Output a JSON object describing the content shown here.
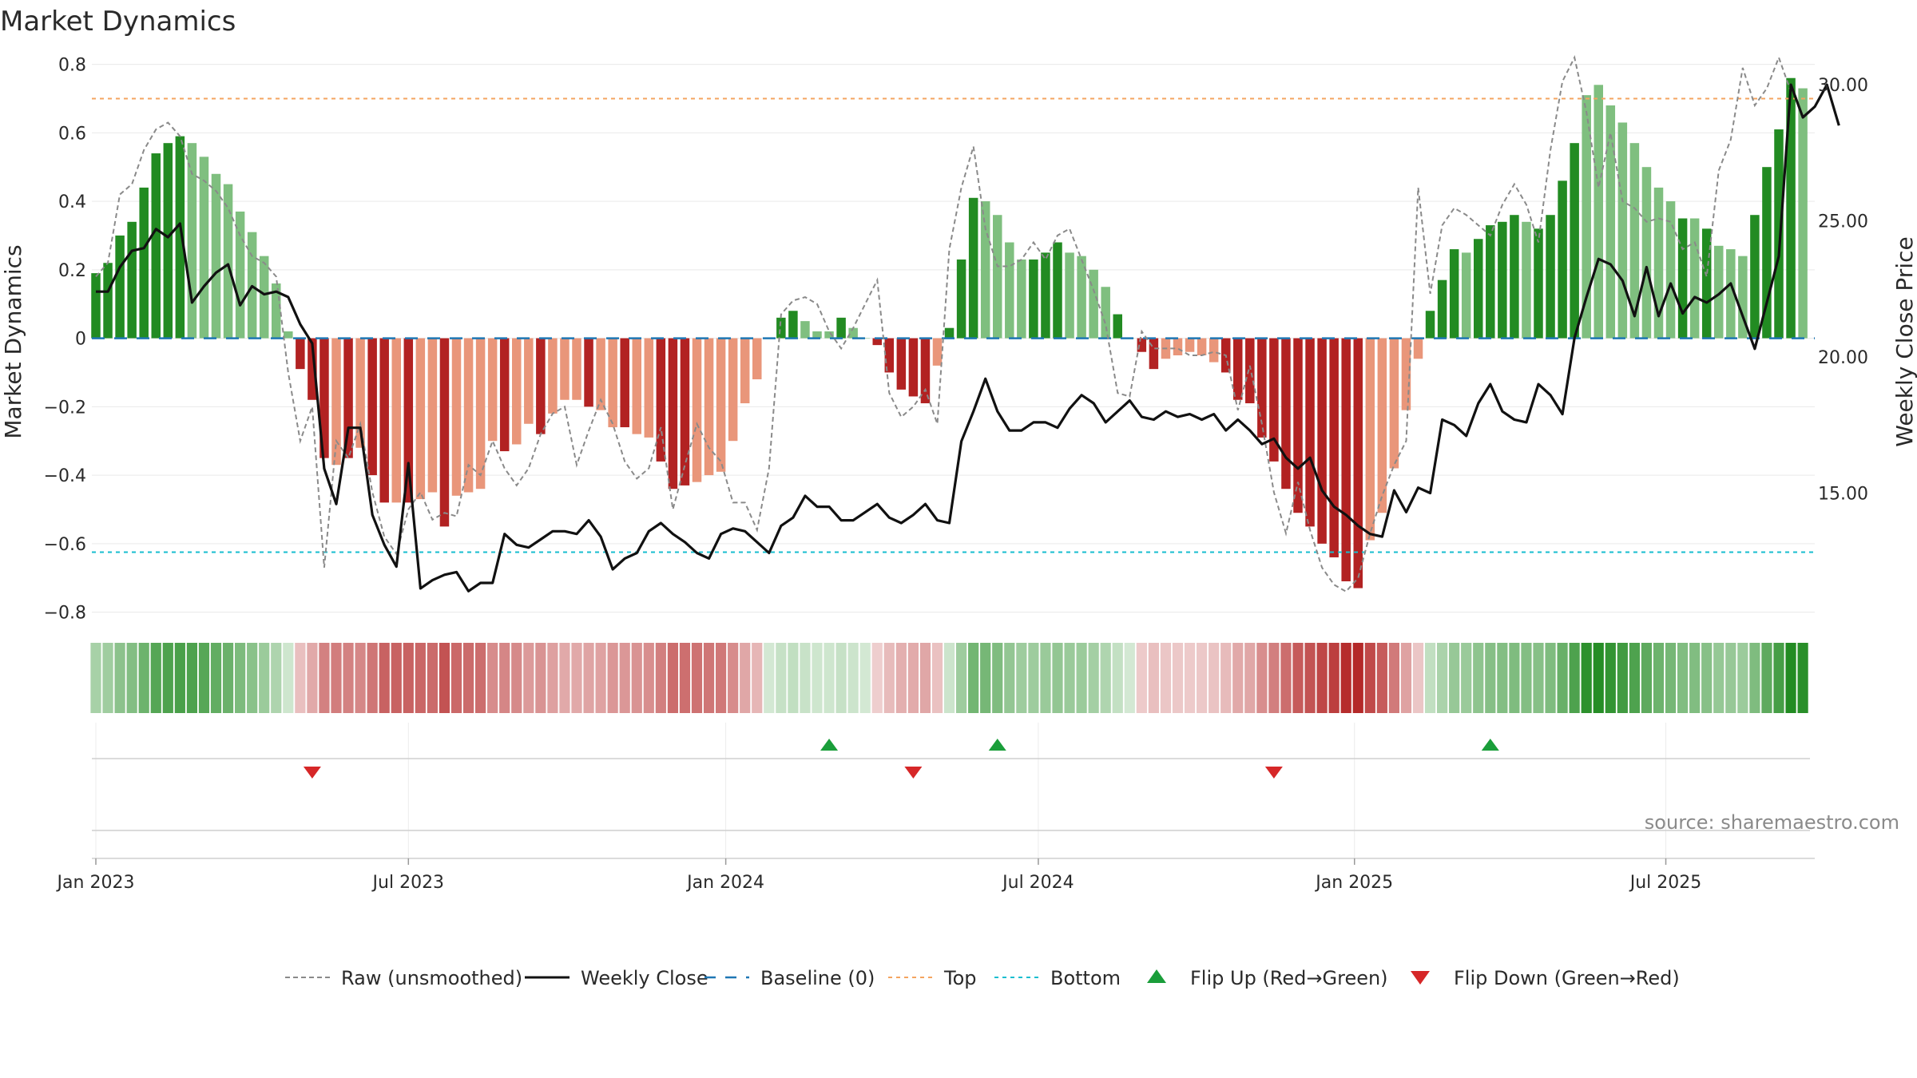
{
  "chart_data": {
    "type": "bar",
    "title": "Market Dynamics",
    "ylabel_left": "Market Dynamics",
    "ylabel_right": "Weekly Close Price",
    "source": "source: sharemaestro.com",
    "ylim_left": [
      -0.85,
      0.82
    ],
    "ylim_right": [
      10.0,
      31.0
    ],
    "left_ticks": [
      {
        "v": 0.8,
        "label": "0.8"
      },
      {
        "v": 0.6,
        "label": "0.6"
      },
      {
        "v": 0.4,
        "label": "0.4"
      },
      {
        "v": 0.2,
        "label": "0.2"
      },
      {
        "v": 0.0,
        "label": "0"
      },
      {
        "v": -0.2,
        "label": "−0.2"
      },
      {
        "v": -0.4,
        "label": "−0.4"
      },
      {
        "v": -0.6,
        "label": "−0.6"
      },
      {
        "v": -0.8,
        "label": "−0.8"
      }
    ],
    "right_ticks": [
      {
        "v": 30,
        "label": "30.00"
      },
      {
        "v": 25,
        "label": "25.00"
      },
      {
        "v": 20,
        "label": "20.00"
      },
      {
        "v": 15,
        "label": "15.00"
      }
    ],
    "x_ticks": [
      {
        "week": 1,
        "label": "Jan 2023"
      },
      {
        "week": 27,
        "label": "Jul 2023"
      },
      {
        "week": 53.4,
        "label": "Jan 2024"
      },
      {
        "week": 79.4,
        "label": "Jul 2024"
      },
      {
        "week": 105.7,
        "label": "Jan 2025"
      },
      {
        "week": 131.6,
        "label": "Jul 2025"
      }
    ],
    "top_line": 0.7,
    "bottom_line": -0.625,
    "baseline": 0,
    "colors": {
      "strong_green": "#228b22",
      "weak_green": "#7fbf7f",
      "strong_red": "#b22222",
      "weak_red": "#e9967a",
      "close": "#111111",
      "raw": "#8a8a8a",
      "baseline": "#1f77b4",
      "top": "#f4a460",
      "bottom": "#17becf",
      "flip_up": "#1a9e3a",
      "flip_down": "#d62728"
    },
    "smoothed": [
      0.19,
      0.22,
      0.3,
      0.34,
      0.44,
      0.54,
      0.57,
      0.59,
      0.57,
      0.53,
      0.48,
      0.45,
      0.37,
      0.31,
      0.24,
      0.16,
      0.02,
      -0.09,
      -0.18,
      -0.35,
      -0.37,
      -0.35,
      -0.32,
      -0.4,
      -0.48,
      -0.48,
      -0.48,
      -0.47,
      -0.45,
      -0.55,
      -0.46,
      -0.45,
      -0.44,
      -0.3,
      -0.33,
      -0.31,
      -0.25,
      -0.28,
      -0.22,
      -0.18,
      -0.18,
      -0.2,
      -0.21,
      -0.26,
      -0.26,
      -0.28,
      -0.29,
      -0.36,
      -0.44,
      -0.43,
      -0.42,
      -0.4,
      -0.39,
      -0.3,
      -0.19,
      -0.12,
      0.0,
      0.06,
      0.08,
      0.05,
      0.02,
      0.02,
      0.06,
      0.03,
      0.0,
      -0.02,
      -0.1,
      -0.15,
      -0.17,
      -0.19,
      -0.08,
      0.03,
      0.23,
      0.41,
      0.4,
      0.36,
      0.28,
      0.23,
      0.23,
      0.25,
      0.28,
      0.25,
      0.24,
      0.2,
      0.15,
      0.07,
      0.0,
      -0.04,
      -0.09,
      -0.06,
      -0.05,
      -0.04,
      -0.05,
      -0.07,
      -0.1,
      -0.18,
      -0.19,
      -0.29,
      -0.36,
      -0.44,
      -0.51,
      -0.55,
      -0.6,
      -0.64,
      -0.71,
      -0.73,
      -0.59,
      -0.51,
      -0.38,
      -0.21,
      -0.06,
      0.08,
      0.17,
      0.26,
      0.25,
      0.29,
      0.33,
      0.34,
      0.36,
      0.34,
      0.32,
      0.36,
      0.46,
      0.57,
      0.71,
      0.74,
      0.68,
      0.63,
      0.57,
      0.5,
      0.44,
      0.4,
      0.35,
      0.35,
      0.32,
      0.27,
      0.26,
      0.24,
      0.36,
      0.5,
      0.61,
      0.76,
      0.73
    ],
    "strength": [
      "s",
      "s",
      "s",
      "s",
      "s",
      "s",
      "s",
      "s",
      "w",
      "w",
      "w",
      "w",
      "w",
      "w",
      "w",
      "w",
      "w",
      "s",
      "s",
      "s",
      "w",
      "s",
      "w",
      "s",
      "s",
      "w",
      "s",
      "w",
      "w",
      "s",
      "w",
      "w",
      "w",
      "w",
      "s",
      "w",
      "w",
      "s",
      "w",
      "w",
      "w",
      "s",
      "w",
      "w",
      "s",
      "w",
      "w",
      "s",
      "s",
      "s",
      "w",
      "w",
      "w",
      "w",
      "w",
      "w",
      "w",
      "s",
      "s",
      "w",
      "w",
      "w",
      "s",
      "w",
      "w",
      "s",
      "s",
      "s",
      "s",
      "s",
      "w",
      "s",
      "s",
      "s",
      "w",
      "w",
      "w",
      "w",
      "s",
      "s",
      "s",
      "w",
      "w",
      "w",
      "w",
      "s",
      "w",
      "s",
      "s",
      "w",
      "w",
      "w",
      "w",
      "w",
      "s",
      "s",
      "s",
      "s",
      "s",
      "s",
      "s",
      "s",
      "s",
      "s",
      "s",
      "s",
      "w",
      "w",
      "w",
      "w",
      "w",
      "s",
      "s",
      "s",
      "w",
      "s",
      "s",
      "s",
      "s",
      "w",
      "s",
      "s",
      "s",
      "s",
      "w",
      "w",
      "w",
      "w",
      "w",
      "w",
      "w",
      "w",
      "s",
      "w",
      "s",
      "w",
      "w",
      "w",
      "s",
      "s",
      "s",
      "s",
      "w"
    ],
    "close": [
      22.4,
      22.4,
      23.3,
      23.9,
      24.0,
      24.7,
      24.4,
      24.9,
      22.0,
      22.6,
      23.1,
      23.4,
      21.9,
      22.6,
      22.3,
      22.4,
      22.2,
      21.2,
      20.5,
      15.9,
      14.6,
      17.4,
      17.4,
      14.2,
      13.1,
      12.3,
      16.1,
      11.5,
      11.8,
      12.0,
      12.1,
      11.4,
      11.7,
      11.7,
      13.5,
      13.1,
      13.0,
      13.3,
      13.6,
      13.6,
      13.5,
      14.0,
      13.4,
      12.2,
      12.6,
      12.8,
      13.6,
      13.9,
      13.5,
      13.2,
      12.8,
      12.6,
      13.5,
      13.7,
      13.6,
      13.2,
      12.8,
      13.8,
      14.1,
      14.9,
      14.5,
      14.5,
      14.0,
      14.0,
      14.3,
      14.6,
      14.1,
      13.9,
      14.2,
      14.6,
      14.0,
      13.9,
      16.9,
      18.0,
      19.2,
      18.0,
      17.3,
      17.3,
      17.6,
      17.6,
      17.4,
      18.1,
      18.6,
      18.3,
      17.6,
      18.0,
      18.4,
      17.8,
      17.7,
      18.0,
      17.8,
      17.9,
      17.7,
      17.9,
      17.3,
      17.7,
      17.3,
      16.8,
      17.0,
      16.3,
      15.9,
      16.3,
      15.1,
      14.5,
      14.2,
      13.8,
      13.5,
      13.4,
      15.1,
      14.3,
      15.2,
      15.0,
      17.7,
      17.5,
      17.1,
      18.3,
      19.0,
      18.0,
      17.7,
      17.6,
      19.0,
      18.6,
      17.9,
      20.7,
      22.2,
      23.6,
      23.4,
      22.8,
      21.5,
      23.3,
      21.5,
      22.7,
      21.6,
      22.2,
      22.0,
      22.3,
      22.7,
      21.5,
      20.3,
      22.0,
      23.7,
      30.0,
      28.8,
      29.2,
      30.0,
      28.5
    ],
    "raw": [
      0.18,
      0.22,
      0.42,
      0.45,
      0.55,
      0.61,
      0.63,
      0.59,
      0.48,
      0.46,
      0.43,
      0.38,
      0.3,
      0.24,
      0.22,
      0.18,
      -0.1,
      -0.3,
      -0.2,
      -0.67,
      -0.3,
      -0.35,
      -0.25,
      -0.45,
      -0.58,
      -0.63,
      -0.5,
      -0.45,
      -0.53,
      -0.51,
      -0.52,
      -0.37,
      -0.4,
      -0.3,
      -0.38,
      -0.43,
      -0.38,
      -0.28,
      -0.22,
      -0.2,
      -0.37,
      -0.27,
      -0.18,
      -0.25,
      -0.36,
      -0.41,
      -0.38,
      -0.26,
      -0.5,
      -0.37,
      -0.25,
      -0.32,
      -0.36,
      -0.48,
      -0.48,
      -0.56,
      -0.38,
      0.07,
      0.11,
      0.12,
      0.1,
      0.02,
      -0.03,
      0.03,
      0.1,
      0.17,
      -0.16,
      -0.23,
      -0.2,
      -0.15,
      -0.25,
      0.26,
      0.44,
      0.56,
      0.32,
      0.21,
      0.21,
      0.23,
      0.28,
      0.23,
      0.3,
      0.32,
      0.23,
      0.14,
      0.04,
      -0.16,
      -0.17,
      0.02,
      -0.03,
      -0.03,
      -0.03,
      -0.05,
      -0.05,
      -0.04,
      -0.05,
      -0.21,
      -0.08,
      -0.25,
      -0.45,
      -0.57,
      -0.42,
      -0.56,
      -0.67,
      -0.72,
      -0.74,
      -0.7,
      -0.57,
      -0.46,
      -0.37,
      -0.3,
      0.44,
      0.13,
      0.33,
      0.38,
      0.36,
      0.33,
      0.3,
      0.39,
      0.45,
      0.39,
      0.28,
      0.55,
      0.75,
      0.82,
      0.66,
      0.44,
      0.6,
      0.4,
      0.38,
      0.34,
      0.35,
      0.34,
      0.26,
      0.28,
      0.18,
      0.49,
      0.58,
      0.79,
      0.68,
      0.73,
      0.82,
      0.72
    ],
    "flips_up": [
      61,
      75,
      116
    ],
    "flips_down": [
      18,
      68,
      98
    ],
    "legend": [
      {
        "key": "raw",
        "label": "Raw (unsmoothed)"
      },
      {
        "key": "close",
        "label": "Weekly Close"
      },
      {
        "key": "baseline",
        "label": "Baseline (0)"
      },
      {
        "key": "top",
        "label": "Top"
      },
      {
        "key": "bottom",
        "label": "Bottom"
      },
      {
        "key": "flip_up",
        "label": "Flip Up (Red→Green)"
      },
      {
        "key": "flip_down",
        "label": "Flip Down (Green→Red)"
      }
    ]
  }
}
